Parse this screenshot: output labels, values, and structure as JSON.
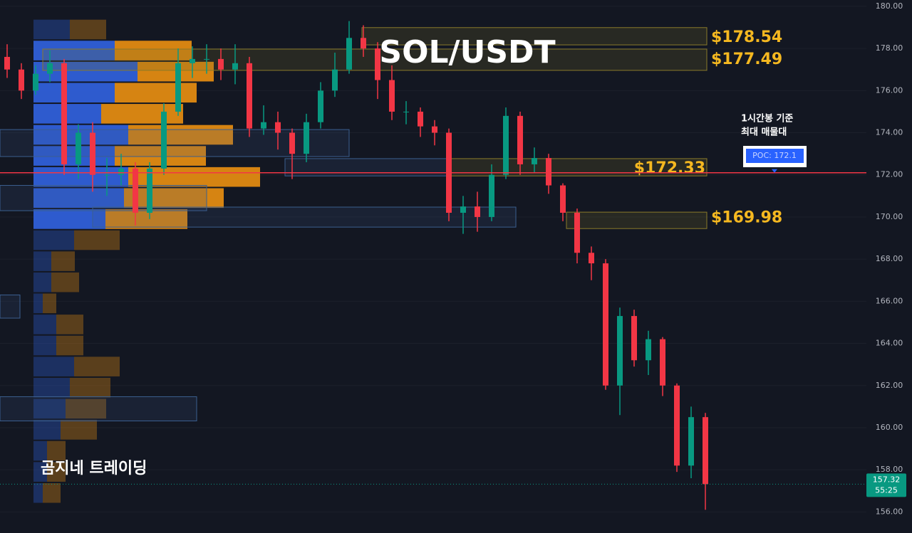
{
  "chart_data": {
    "type": "candlestick",
    "title": "SOL/USDT",
    "watermark": "곰지네 트레이딩",
    "annotation": [
      "1시간봉 기준",
      "최대 매물대"
    ],
    "ylim": [
      155,
      180.3
    ],
    "yticks": [
      {
        "value": 156,
        "label": "156.00"
      },
      {
        "value": 158,
        "label": "158.00"
      },
      {
        "value": 160,
        "label": "160.00"
      },
      {
        "value": 162,
        "label": "162.00"
      },
      {
        "value": 164,
        "label": "164.00"
      },
      {
        "value": 166,
        "label": "166.00"
      },
      {
        "value": 168,
        "label": "168.00"
      },
      {
        "value": 170,
        "label": "170.00"
      },
      {
        "value": 172,
        "label": "172.00"
      },
      {
        "value": 174,
        "label": "174.00"
      },
      {
        "value": 176,
        "label": "176.00"
      },
      {
        "value": 178,
        "label": "178.00"
      },
      {
        "value": 180,
        "label": "180.00"
      }
    ],
    "grid": true,
    "up_color": "#089981",
    "down_color": "#f23645",
    "open": [
      177.6,
      177,
      176,
      176.8,
      177.3,
      172.5,
      174,
      172,
      172,
      172.3,
      170.2,
      172.3,
      175,
      177.3,
      177.5,
      177.5,
      177,
      177.3,
      174.2,
      174.5,
      174,
      173,
      174.5,
      176,
      177,
      178.5,
      178,
      176.5,
      175,
      175,
      174.3,
      174,
      170.2,
      170.5,
      170,
      172,
      174.8,
      172.5,
      172.8,
      171.5,
      170.2,
      168.3,
      167.8,
      162,
      165.3,
      163.2,
      164.2,
      162,
      158.2,
      160.5
    ],
    "high": [
      178.2,
      177.3,
      177.2,
      177.9,
      177.5,
      174.4,
      174.5,
      172.8,
      173,
      172.6,
      172.6,
      175.4,
      178,
      178.1,
      178.2,
      178,
      178.2,
      177.6,
      175.3,
      175,
      174.2,
      174.9,
      176.4,
      177.8,
      179.3,
      179.1,
      178.3,
      177.2,
      175.5,
      175.2,
      174.6,
      174.2,
      171,
      171.2,
      172.5,
      175.2,
      175,
      173.3,
      173,
      171.6,
      170.4,
      168.6,
      168,
      165.7,
      165.6,
      164.6,
      164.3,
      162.1,
      161,
      160.7
    ],
    "low": [
      176.6,
      175.6,
      175.8,
      176.4,
      172,
      171.8,
      171.2,
      171,
      171.5,
      169.6,
      169.9,
      172,
      174.8,
      176.6,
      176.8,
      176.5,
      176.3,
      173.8,
      173.9,
      173.2,
      171.8,
      172.6,
      174.2,
      175.7,
      176.8,
      177.6,
      175.6,
      174.6,
      174.4,
      173.8,
      173.4,
      169.8,
      169.2,
      169.3,
      169.8,
      171.8,
      172,
      172.1,
      171.1,
      169.8,
      167.8,
      167,
      161.8,
      160.6,
      162.9,
      162.5,
      161.5,
      157.9,
      157.6,
      156.1
    ],
    "close": [
      177,
      176,
      176.8,
      177.3,
      172.5,
      174,
      172,
      172,
      172.3,
      170.2,
      172.3,
      175,
      177.3,
      177.5,
      177.5,
      177,
      177.3,
      174.2,
      174.5,
      174,
      173,
      174.5,
      176,
      177,
      178.5,
      178,
      176.5,
      175,
      175,
      174.3,
      174,
      170.2,
      170.5,
      170,
      172,
      174.8,
      172.5,
      172.8,
      171.5,
      170.2,
      168.3,
      167.8,
      162,
      165.3,
      163.2,
      164.2,
      162,
      158.2,
      160.5,
      157.32
    ],
    "last_price": {
      "value": 157.32,
      "label": "157.32",
      "countdown": "55:25",
      "color": "#089981"
    },
    "poc": {
      "value": 172.1,
      "label": "POC: 172.1",
      "color": "#f23645"
    },
    "volume_profile": {
      "bins": [
        179.4,
        178.4,
        177.4,
        176.4,
        175.4,
        174.4,
        173.4,
        172.4,
        171.4,
        170.4,
        169.4,
        168.4,
        167.4,
        166.4,
        165.4,
        164.4,
        163.4,
        162.4,
        161.4,
        160.4,
        159.4,
        158.4,
        157.4,
        156.4
      ],
      "buy": [
        51,
        114,
        146,
        114,
        95,
        133,
        114,
        133,
        127,
        101,
        57,
        25,
        25,
        13,
        32,
        32,
        57,
        51,
        45,
        38,
        19,
        19,
        13
      ],
      "sell": [
        51,
        108,
        107,
        115,
        115,
        147,
        128,
        185,
        140,
        115,
        64,
        33,
        39,
        19,
        38,
        38,
        64,
        57,
        57,
        51,
        26,
        26,
        25
      ],
      "value_area": [
        169.4,
        178.4
      ],
      "buy_color": "#2f5fd8",
      "sell_color": "#e08a12"
    },
    "zones": [
      {
        "value": 178.54,
        "label": "$178.54",
        "range": [
          178.17,
          178.99
        ],
        "start": 24.9
      },
      {
        "value": 177.49,
        "label": "$177.49",
        "range": [
          176.96,
          177.97
        ],
        "start": 2.5
      },
      {
        "value": 172.33,
        "label": "$172.33",
        "range": [
          171.95,
          172.77
        ],
        "start": 31
      },
      {
        "value": 169.98,
        "label": "$169.98",
        "range": [
          169.45,
          170.23
        ],
        "start": 39.25
      }
    ],
    "liquidity_boxes": [
      {
        "range": [
          172.87,
          174.15
        ],
        "start": -0.5,
        "end": 24
      },
      {
        "range": [
          171.95,
          172.77
        ],
        "start": 19.5,
        "end": 31
      },
      {
        "range": [
          170.3,
          171.5
        ],
        "start": -0.5,
        "end": 14
      },
      {
        "range": [
          169.52,
          170.47
        ],
        "start": 6,
        "end": 35.7
      },
      {
        "range": [
          165.2,
          166.3
        ],
        "start": -0.5,
        "end": 0.9
      },
      {
        "range": [
          160.32,
          161.47
        ],
        "start": -0.5,
        "end": 13.3
      }
    ]
  }
}
